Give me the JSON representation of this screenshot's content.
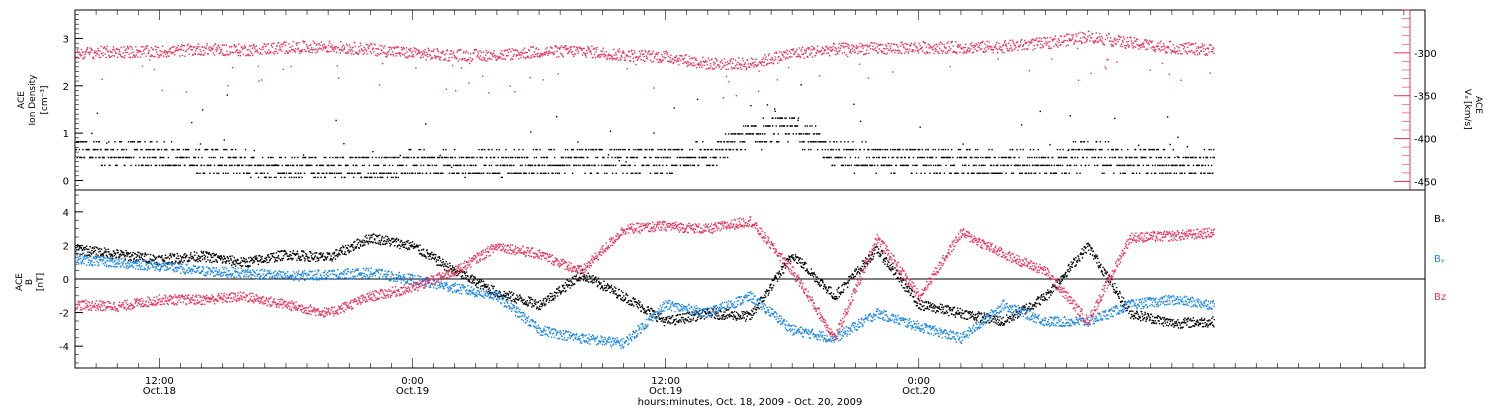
{
  "colors": {
    "black": "#000000",
    "red": "#e8345a",
    "blue": "#1e88e5",
    "panel_border": "#000000"
  },
  "chart_data": [
    {
      "type": "scatter",
      "panel": "top",
      "left_axis_label": {
        "line1": "ACE",
        "line2": "Ion Density",
        "unit": "[cm⁻³]"
      },
      "right_axis_label": {
        "line1": "ACE",
        "var": "Vₓ",
        "unit": "[km/s]"
      },
      "ylim_left": [
        -0.2,
        3.6
      ],
      "ylim_right": [
        -460,
        -250
      ],
      "left_ticks": [
        "0",
        "1",
        "2",
        "3"
      ],
      "right_ticks": [
        "-300",
        "-350",
        "-400",
        "-450"
      ],
      "series": [
        {
          "name": "Ion Density",
          "axis": "left",
          "color": "#000000",
          "x_hours": [
            0,
            2,
            4,
            6,
            8,
            10,
            12,
            14,
            16,
            18,
            20,
            22,
            24,
            26,
            28,
            30,
            32,
            34,
            36,
            38,
            40,
            42,
            44,
            46,
            48,
            50,
            52,
            54
          ],
          "values": [
            0.6,
            0.5,
            0.5,
            0.4,
            0.3,
            0.2,
            0.2,
            0.2,
            0.3,
            0.3,
            0.3,
            0.3,
            0.4,
            0.4,
            0.4,
            0.5,
            0.9,
            1.1,
            0.5,
            0.4,
            0.4,
            0.3,
            0.3,
            0.3,
            0.5,
            0.4,
            0.3,
            0.3
          ]
        },
        {
          "name": "Vₓ",
          "axis": "right",
          "color": "#e8345a",
          "x_hours": [
            0,
            2,
            4,
            6,
            8,
            10,
            12,
            14,
            16,
            18,
            20,
            22,
            24,
            26,
            28,
            30,
            32,
            34,
            36,
            38,
            40,
            42,
            44,
            46,
            48,
            50,
            52,
            54
          ],
          "values": [
            -300,
            -298,
            -298,
            -295,
            -296,
            -293,
            -292,
            -295,
            -300,
            -302,
            -302,
            -298,
            -297,
            -302,
            -304,
            -312,
            -312,
            -300,
            -295,
            -294,
            -293,
            -293,
            -292,
            -288,
            -280,
            -288,
            -293,
            -296
          ]
        }
      ]
    },
    {
      "type": "scatter",
      "panel": "bottom",
      "left_axis_label": {
        "line1": "ACE",
        "line2": "B",
        "unit": "[nT]"
      },
      "ylim": [
        -5.3,
        5.3
      ],
      "ticks": [
        "4",
        "2",
        "0",
        "-2",
        "-4"
      ],
      "legend": [
        {
          "name": "Bₓ",
          "color": "#000000"
        },
        {
          "name": "Bᵧ",
          "color": "#1e88e5"
        },
        {
          "name": "Bz",
          "color": "#e8345a"
        }
      ],
      "series": [
        {
          "name": "Bₓ",
          "color": "#000000",
          "x_hours": [
            0,
            2,
            4,
            6,
            8,
            10,
            12,
            14,
            16,
            18,
            20,
            22,
            24,
            26,
            28,
            30,
            32,
            34,
            36,
            38,
            40,
            42,
            44,
            46,
            48,
            50,
            52,
            54
          ],
          "values": [
            1.8,
            1.5,
            1.2,
            1.4,
            1.0,
            1.5,
            1.3,
            2.5,
            2.0,
            0.5,
            -0.8,
            -1.5,
            0.3,
            -1.0,
            -2.5,
            -2.0,
            -2.2,
            1.5,
            -1.0,
            1.8,
            -1.5,
            -2.0,
            -2.5,
            -1.0,
            2.0,
            -2.0,
            -2.6,
            -2.5
          ]
        },
        {
          "name": "Bᵧ",
          "color": "#1e88e5",
          "x_hours": [
            0,
            2,
            4,
            6,
            8,
            10,
            12,
            14,
            16,
            18,
            20,
            22,
            24,
            26,
            28,
            30,
            32,
            34,
            36,
            38,
            40,
            42,
            44,
            46,
            48,
            50,
            52,
            54
          ],
          "values": [
            1.2,
            1.0,
            0.8,
            0.5,
            0.4,
            0.2,
            0.3,
            0.4,
            0.0,
            -0.5,
            -1.0,
            -3.0,
            -3.5,
            -3.8,
            -1.5,
            -2.0,
            -1.0,
            -3.0,
            -3.5,
            -2.0,
            -2.8,
            -3.5,
            -1.5,
            -2.5,
            -2.5,
            -1.5,
            -1.2,
            -1.5
          ]
        },
        {
          "name": "Bz",
          "color": "#e8345a",
          "x_hours": [
            0,
            2,
            4,
            6,
            8,
            10,
            12,
            14,
            16,
            18,
            20,
            22,
            24,
            26,
            28,
            30,
            32,
            34,
            36,
            38,
            40,
            42,
            44,
            46,
            48,
            50,
            52,
            54
          ],
          "values": [
            -1.5,
            -1.6,
            -1.2,
            -1.2,
            -1.0,
            -1.5,
            -2.0,
            -1.0,
            -0.5,
            0.5,
            2.0,
            1.5,
            0.5,
            3.0,
            3.2,
            3.0,
            3.5,
            0.5,
            -3.5,
            2.5,
            -1.0,
            2.8,
            1.5,
            0.5,
            -2.5,
            2.5,
            2.6,
            2.8
          ]
        }
      ]
    }
  ],
  "x_axis": {
    "range_hours": [
      0,
      64
    ],
    "title": "hours:minutes, Oct. 18, 2009 - Oct. 20, 2009",
    "ticks": [
      {
        "hour": 4,
        "label": "12:00",
        "sub": "Oct.18"
      },
      {
        "hour": 16,
        "label": "0:00",
        "sub": "Oct.19"
      },
      {
        "hour": 28,
        "label": "12:00",
        "sub": "Oct.19"
      },
      {
        "hour": 40,
        "label": "0:00",
        "sub": "Oct.20"
      }
    ]
  }
}
